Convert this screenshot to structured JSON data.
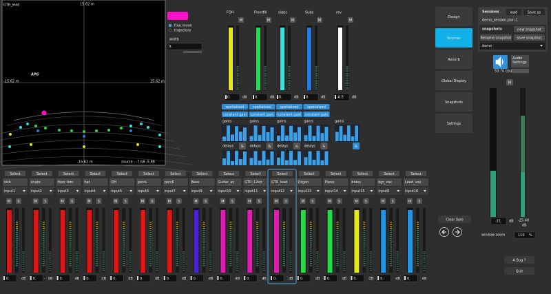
{
  "spatial_view": {
    "source_name": "GTR_lead",
    "top_label": "15.62 m",
    "left_label": "-15.62 m",
    "right_label": "15.62 m",
    "bottom_label": "-15.62 m",
    "position": "source : -7.58 -5.86",
    "logo": "APG"
  },
  "move_panel": {
    "modes": [
      "free move",
      "trajectory"
    ],
    "width_label": "width",
    "width_value": "0."
  },
  "bus_labels": {
    "mute": "M",
    "unit": "dB",
    "spatialized": "spatialized",
    "constant_gain": "constant gain",
    "gains": "gains",
    "delays": "delays",
    "link": "&"
  },
  "buses": [
    {
      "name": "FOH",
      "gain": "0.",
      "color": "#e6e61c"
    },
    {
      "name": "Frontfill",
      "gain": "0.",
      "color": "#22dd55"
    },
    {
      "name": "sides",
      "gain": "0.",
      "color": "#2fe6df"
    },
    {
      "name": "Subs",
      "gain": "0.",
      "color": "#1f7de6"
    },
    {
      "name": "rev",
      "gain": "-6.5",
      "color": "#ffffff"
    }
  ],
  "channel_labels": {
    "select": "Select",
    "mute": "M",
    "solo": "S",
    "unit": "dB"
  },
  "selected_channel": 10,
  "channels": [
    {
      "name": "kick",
      "input": "input1",
      "gain": "0.",
      "color": "#e01616"
    },
    {
      "name": "snare",
      "input": "input2",
      "gain": "0.",
      "color": "#e01616"
    },
    {
      "name": "floor tom",
      "input": "input3",
      "gain": "0.",
      "color": "#e01616"
    },
    {
      "name": "hat",
      "input": "input4",
      "gain": "0.",
      "color": "#e01616"
    },
    {
      "name": "OH",
      "input": "input5",
      "gain": "0.",
      "color": "#e01616"
    },
    {
      "name": "percL",
      "input": "input6",
      "gain": "0.",
      "color": "#e01616"
    },
    {
      "name": "percR",
      "input": "input7",
      "gain": "0.",
      "color": "#e01616"
    },
    {
      "name": "Bass",
      "input": "input9",
      "gain": "0.",
      "color": "#4b22d6"
    },
    {
      "name": "Guitar_ac",
      "input": "input10",
      "gain": "0.",
      "color": "#e21ab4"
    },
    {
      "name": "GTR_12str",
      "input": "input11",
      "gain": "0.",
      "color": "#e21ab4"
    },
    {
      "name": "GTR_lead",
      "input": "input12",
      "gain": "0.",
      "color": "#e21ab4"
    },
    {
      "name": "Organ",
      "input": "input13",
      "gain": "0.",
      "color": "#22dd44"
    },
    {
      "name": "Piano",
      "input": "input14",
      "gain": "0.",
      "color": "#22dd44"
    },
    {
      "name": "brass",
      "input": "input15",
      "gain": "0.",
      "color": "#e6e61c"
    },
    {
      "name": "bgr_vox",
      "input": "input8",
      "gain": "0.",
      "color": "#2196e8"
    },
    {
      "name": "Lead_vox",
      "input": "input16",
      "gain": "0.",
      "color": "#2196e8"
    }
  ],
  "menu": {
    "items": [
      "Design",
      "Sources",
      "Reverb",
      "Global Display",
      "Snapshots",
      "Settings"
    ],
    "active_index": 1
  },
  "sessions": {
    "title": "Sessions",
    "load": "load",
    "save_as": "Save as",
    "file": "demo_session.json 1"
  },
  "snapshots": {
    "title": "snapshots",
    "new": "new snapshot",
    "rename": "Rename snapshot",
    "save": "save snapshot",
    "current": "demo"
  },
  "audio": {
    "button": "Audio Settings",
    "cpu": "53. % cpu",
    "master_mute": "M",
    "master_gain": "-21.",
    "master_unit": "dB",
    "peak": "-25.40",
    "peak_unit": "dB",
    "zoom_label": "window zoom",
    "zoom_value": "110",
    "zoom_unit": "%"
  },
  "buttons": {
    "clear_solo": "Clear Solo",
    "bug": "A Bug ?",
    "quit": "Quit"
  }
}
